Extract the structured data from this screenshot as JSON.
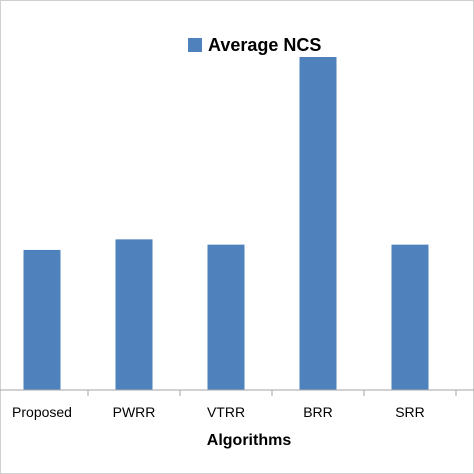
{
  "chart_data": {
    "type": "bar",
    "title": "",
    "xlabel": "Algorithms",
    "ylabel": "",
    "categories": [
      "Proposed",
      "PWRR",
      "VTRR",
      "BRR",
      "SRR"
    ],
    "series": [
      {
        "name": "Average NCS",
        "values": [
          0.265,
          0.285,
          0.275,
          0.63,
          0.275
        ]
      }
    ],
    "ylim": [
      0,
      0.7
    ],
    "grid": false,
    "legend_position": "top",
    "colors": {
      "bar": "#4f81bd",
      "axis": "#a6a6a6",
      "frame": "#d0d0d0"
    }
  }
}
